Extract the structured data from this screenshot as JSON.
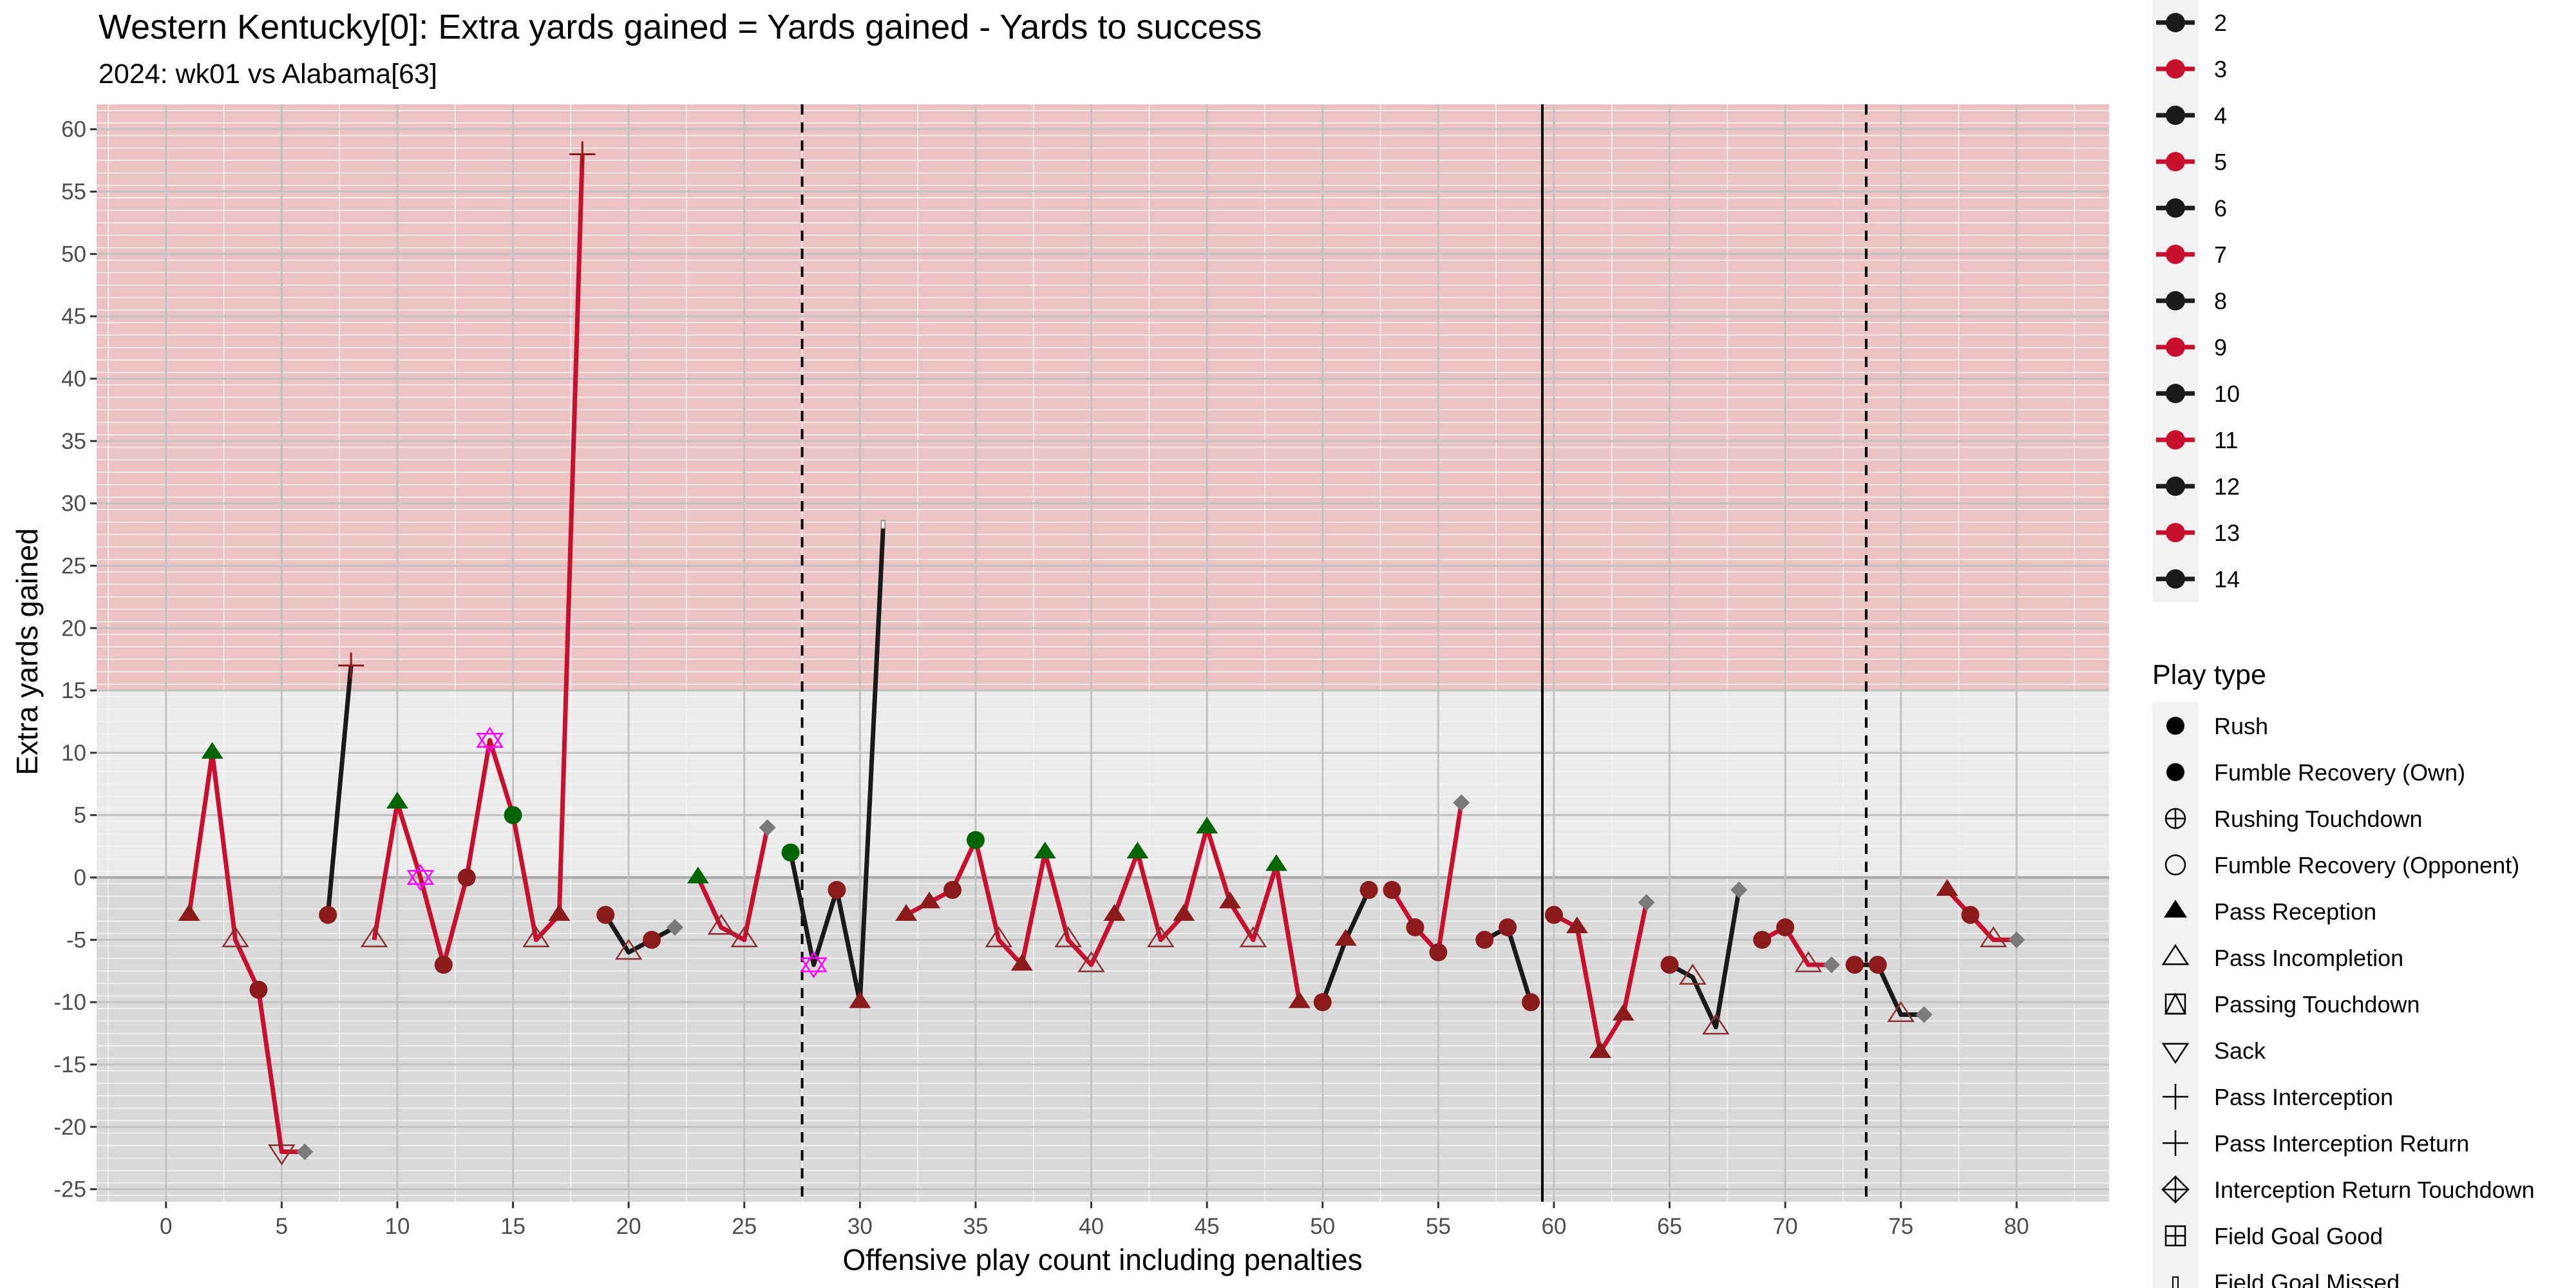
{
  "chart_data": {
    "type": "line",
    "title": "Western Kentucky[0]: Extra yards gained = Yards gained - Yards to success",
    "subtitle": "2024: wk01 vs Alabama[63]",
    "xlabel": "Offensive play count including penalties",
    "ylabel": "Extra yards gained",
    "xlim": [
      -3,
      84
    ],
    "ylim": [
      -26,
      62
    ],
    "x_ticks": [
      0,
      5,
      10,
      15,
      20,
      25,
      30,
      35,
      40,
      45,
      50,
      55,
      60,
      65,
      70,
      75,
      80
    ],
    "y_ticks": [
      -25,
      -20,
      -15,
      -10,
      -5,
      0,
      5,
      10,
      15,
      20,
      25,
      30,
      35,
      40,
      45,
      50,
      55,
      60
    ],
    "grid": true,
    "bands": [
      {
        "from": 15,
        "to": 62,
        "color": "#ebc3c3"
      },
      {
        "from": 0,
        "to": 15,
        "color": "#ebebeb"
      },
      {
        "from": -26,
        "to": 0,
        "color": "#d9d9d9"
      }
    ],
    "reference_lines": [
      {
        "x": 27.5,
        "style": "dashed"
      },
      {
        "x": 59.5,
        "style": "solid"
      },
      {
        "x": 73.5,
        "style": "dashed"
      }
    ],
    "drive_colors": {
      "odd": "#c8102e",
      "even": "#1a1a1a"
    },
    "drives": [
      {
        "drive": 1,
        "points": [
          [
            1,
            -3,
            "pass"
          ],
          [
            2,
            10,
            "pass"
          ],
          [
            3,
            -5,
            "inc"
          ],
          [
            4,
            -9,
            "rush"
          ],
          [
            5,
            -22,
            "sack"
          ],
          [
            6,
            -22,
            "other"
          ]
        ]
      },
      {
        "drive": 2,
        "points": [
          [
            7,
            -3,
            "rush"
          ],
          [
            8,
            17,
            "int"
          ]
        ]
      },
      {
        "drive": 3,
        "points": [
          [
            9,
            -5,
            "inc"
          ],
          [
            10,
            6,
            "pass"
          ],
          [
            11,
            0,
            "pen"
          ],
          [
            12,
            -7,
            "rush"
          ],
          [
            13,
            0,
            "rush"
          ],
          [
            14,
            11,
            "pen"
          ],
          [
            15,
            5,
            "rush"
          ],
          [
            16,
            -5,
            "inc"
          ],
          [
            17,
            -3,
            "pass"
          ],
          [
            18,
            58,
            "int"
          ]
        ]
      },
      {
        "drive": 4,
        "points": [
          [
            19,
            -3,
            "rush"
          ],
          [
            20,
            -6,
            "inc"
          ],
          [
            21,
            -5,
            "rush"
          ],
          [
            22,
            -4,
            "other"
          ]
        ]
      },
      {
        "drive": 5,
        "points": [
          [
            23,
            0,
            "pass"
          ],
          [
            24,
            -4,
            "inc"
          ],
          [
            25,
            -5,
            "inc"
          ],
          [
            26,
            4,
            "other"
          ]
        ]
      },
      {
        "drive": 6,
        "points": [
          [
            27,
            2,
            "rush"
          ],
          [
            28,
            -7,
            "pen"
          ],
          [
            29,
            -1,
            "rush"
          ],
          [
            30,
            -10,
            "pass"
          ],
          [
            31,
            28,
            "fgm"
          ]
        ]
      },
      {
        "drive": 7,
        "points": [
          [
            32,
            -3,
            "pass"
          ],
          [
            33,
            -2,
            "pass"
          ],
          [
            34,
            -1,
            "rush"
          ],
          [
            35,
            3,
            "rush"
          ],
          [
            36,
            -5,
            "inc"
          ],
          [
            37,
            -7,
            "pass"
          ],
          [
            38,
            2,
            "pass"
          ],
          [
            39,
            -5,
            "inc"
          ],
          [
            40,
            -7,
            "inc"
          ],
          [
            41,
            -3,
            "pass"
          ],
          [
            42,
            2,
            "pass"
          ],
          [
            43,
            -5,
            "inc"
          ],
          [
            44,
            -3,
            "pass"
          ],
          [
            45,
            4,
            "pass"
          ],
          [
            46,
            -2,
            "pass"
          ],
          [
            47,
            -5,
            "inc"
          ],
          [
            48,
            1,
            "pass"
          ],
          [
            49,
            -10,
            "pass"
          ]
        ]
      },
      {
        "drive": 8,
        "points": [
          [
            50,
            -10,
            "rush"
          ],
          [
            51,
            -5,
            "pass"
          ],
          [
            52,
            -1,
            "rush"
          ]
        ]
      },
      {
        "drive": 9,
        "points": [
          [
            53,
            -1,
            "rush"
          ],
          [
            54,
            -4,
            "rush"
          ],
          [
            55,
            -6,
            "rush"
          ],
          [
            56,
            6,
            "other"
          ]
        ]
      },
      {
        "drive": 10,
        "points": [
          [
            57,
            -5,
            "rush"
          ],
          [
            58,
            -4,
            "rush"
          ],
          [
            59,
            -10,
            "rush"
          ]
        ]
      },
      {
        "drive": 11,
        "points": [
          [
            60,
            -3,
            "rush"
          ],
          [
            61,
            -4,
            "pass"
          ],
          [
            62,
            -14,
            "pass"
          ],
          [
            63,
            -11,
            "pass"
          ],
          [
            64,
            -2,
            "other"
          ]
        ]
      },
      {
        "drive": 12,
        "points": [
          [
            65,
            -7,
            "rush"
          ],
          [
            66,
            -8,
            "inc"
          ],
          [
            67,
            -12,
            "inc"
          ],
          [
            68,
            -1,
            "other"
          ]
        ]
      },
      {
        "drive": 13,
        "points": [
          [
            69,
            -5,
            "rush"
          ],
          [
            70,
            -4,
            "rush"
          ],
          [
            71,
            -7,
            "inc"
          ],
          [
            72,
            -7,
            "other"
          ]
        ]
      },
      {
        "drive": 14,
        "points": [
          [
            73,
            -7,
            "rush"
          ],
          [
            74,
            -7,
            "rush"
          ],
          [
            75,
            -11,
            "inc"
          ],
          [
            76,
            -11,
            "other"
          ]
        ]
      },
      {
        "drive": 15,
        "points": [
          [
            77,
            -1,
            "pass"
          ],
          [
            78,
            -3,
            "rush"
          ],
          [
            79,
            -5,
            "inc"
          ],
          [
            80,
            -5,
            "other"
          ]
        ]
      }
    ],
    "highlight_points": [
      [
        2,
        "pass"
      ],
      [
        10,
        "pass"
      ],
      [
        15,
        "rush"
      ],
      [
        23,
        "pass"
      ],
      [
        27,
        "rush"
      ],
      [
        35,
        "rush"
      ],
      [
        38,
        "pass"
      ],
      [
        42,
        "pass"
      ],
      [
        45,
        "pass"
      ],
      [
        48,
        "pass"
      ]
    ],
    "legend_drive": {
      "position": "right",
      "entries": [
        "2",
        "3",
        "4",
        "5",
        "6",
        "7",
        "8",
        "9",
        "10",
        "11",
        "12",
        "13",
        "14"
      ]
    },
    "legend_playtype": {
      "position": "right",
      "title": "Play type",
      "entries": [
        {
          "label": "Rush",
          "shape": "circle-filled"
        },
        {
          "label": "Fumble Recovery (Own)",
          "shape": "circle-filled"
        },
        {
          "label": "Rushing Touchdown",
          "shape": "circle-plus"
        },
        {
          "label": "Fumble Recovery (Opponent)",
          "shape": "circle-open"
        },
        {
          "label": "Pass Reception",
          "shape": "triangle-filled"
        },
        {
          "label": "Pass Incompletion",
          "shape": "triangle-open"
        },
        {
          "label": "Passing Touchdown",
          "shape": "triangle-square"
        },
        {
          "label": "Sack",
          "shape": "triangle-down-open"
        },
        {
          "label": "Pass Interception",
          "shape": "plus"
        },
        {
          "label": "Pass Interception Return",
          "shape": "plus"
        },
        {
          "label": "Interception Return Touchdown",
          "shape": "diamond-plus"
        },
        {
          "label": "Field Goal Good",
          "shape": "square-plus"
        },
        {
          "label": "Field Goal Missed",
          "shape": "bar"
        }
      ]
    }
  }
}
